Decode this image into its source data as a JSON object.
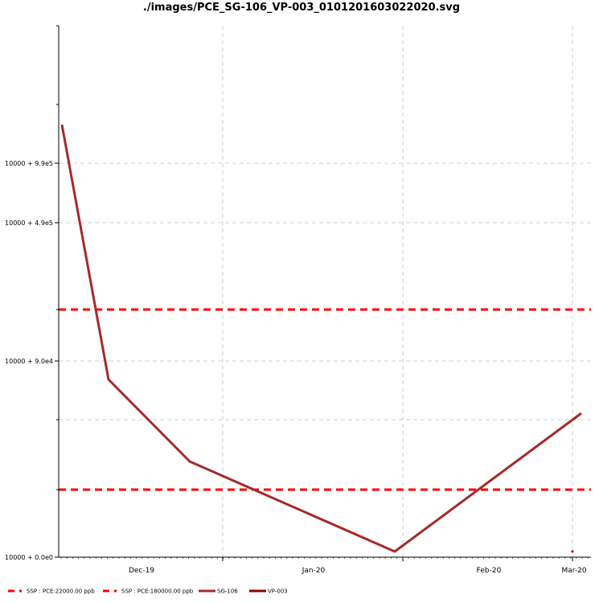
{
  "chart_data": {
    "type": "line",
    "title": "./images/PCE_SG-106_VP-003_0101201603022020.svg",
    "xlabel": "",
    "ylabel": "",
    "x_ticks": [
      "Dec-19",
      "Jan-20",
      "Feb-20",
      "Mar-20"
    ],
    "y_ticks": [
      "10000 + 0.0e0",
      "10000 + 9.0e4",
      "10000 + 4.9e5",
      "10000 + 9.9e5"
    ],
    "grid": true,
    "legend_position": "bottom",
    "series": [
      {
        "name": "SG-106",
        "color": "#a52a2a",
        "style": "solid",
        "x": [
          "2019-11-16",
          "2019-11-24",
          "2019-12-08",
          "2020-01-16",
          "2020-03-03"
        ],
        "y": [
          1500000,
          70000,
          40000,
          11000,
          54000
        ]
      },
      {
        "name": "VP-003",
        "color": "#8b0000",
        "style": "solid",
        "x": [
          "2020-03-02"
        ],
        "y": [
          10500
        ]
      }
    ],
    "reference_lines": [
      {
        "name": "SSP : PCE:22000.00 ppb",
        "value": 22000,
        "color": "#ff0000",
        "style": "dashed"
      },
      {
        "name": "SSP : PCE:180000.00 ppb",
        "value": 180000,
        "color": "#ff0000",
        "style": "dashed"
      }
    ]
  }
}
